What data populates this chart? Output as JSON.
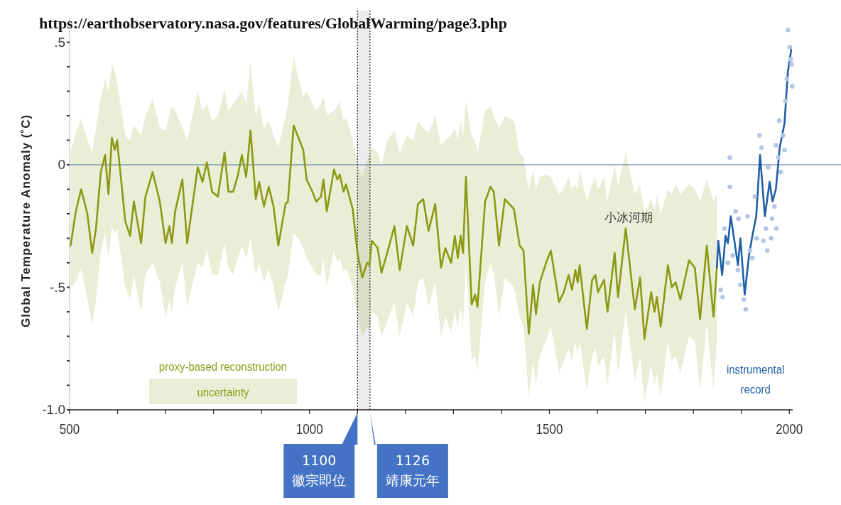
{
  "chart_data": {
    "type": "line",
    "title": "https://earthobservatory.nasa.gov/features/GlobalWarming/page3.php",
    "ylabel": "Global Temperature Anomaly (˚C)",
    "xlim": [
      500,
      2010
    ],
    "ylim": [
      -1.0,
      0.6
    ],
    "xticks": [
      500,
      {
        "value": 600,
        "label": null
      },
      {
        "value": 700,
        "label": null
      },
      {
        "value": 800,
        "label": null
      },
      {
        "value": 900,
        "label": null
      },
      1000,
      {
        "value": 1100,
        "label": null
      },
      {
        "value": 1200,
        "label": null
      },
      {
        "value": 1300,
        "label": null
      },
      {
        "value": 1400,
        "label": null
      },
      1500,
      {
        "value": 1600,
        "label": null
      },
      {
        "value": 1700,
        "label": null
      },
      {
        "value": 1800,
        "label": null
      },
      {
        "value": 1900,
        "label": null
      },
      2000
    ],
    "yticks": [
      {
        "value": -1.0,
        "label": "-1.0"
      },
      {
        "value": -0.9,
        "label": null
      },
      {
        "value": -0.8,
        "label": null
      },
      {
        "value": -0.7,
        "label": null
      },
      {
        "value": -0.6,
        "label": null
      },
      {
        "value": -0.5,
        "label": "-.5"
      },
      {
        "value": -0.4,
        "label": null
      },
      {
        "value": -0.3,
        "label": null
      },
      {
        "value": -0.2,
        "label": null
      },
      {
        "value": -0.1,
        "label": null
      },
      0,
      {
        "value": 0.1,
        "label": null
      },
      {
        "value": 0.2,
        "label": null
      },
      {
        "value": 0.3,
        "label": null
      },
      {
        "value": 0.4,
        "label": null
      },
      {
        "value": 0.5,
        "label": ".5"
      }
    ],
    "legend": "bottom",
    "series": [
      {
        "name": "proxy-based reconstruction",
        "color": "#8a9a12",
        "x": [
          502,
          513,
          524,
          537,
          547,
          555,
          565,
          574,
          581,
          588,
          594,
          599,
          616,
          626,
          634,
          649,
          658,
          673,
          688,
          700,
          708,
          713,
          720,
          735,
          745,
          767,
          777,
          786,
          797,
          809,
          823,
          831,
          841,
          851,
          859,
          868,
          877,
          888,
          895,
          905,
          915,
          925,
          935,
          950,
          955,
          967,
          977,
          987,
          994,
          1006,
          1014,
          1024,
          1029,
          1036,
          1051,
          1058,
          1063,
          1071,
          1076,
          1090,
          1100,
          1110,
          1120,
          1125,
          1130,
          1142,
          1150,
          1162,
          1177,
          1188,
          1203,
          1216,
          1226,
          1237,
          1248,
          1262,
          1274,
          1283,
          1295,
          1303,
          1309,
          1315,
          1320,
          1326,
          1338,
          1345,
          1350,
          1366,
          1377,
          1384,
          1395,
          1407,
          1426,
          1438,
          1446,
          1457,
          1466,
          1472,
          1480,
          1493,
          1503,
          1520,
          1530,
          1540,
          1547,
          1554,
          1559,
          1563,
          1578,
          1589,
          1596,
          1601,
          1614,
          1621,
          1636,
          1643,
          1659,
          1678,
          1689,
          1698,
          1712,
          1719,
          1724,
          1732,
          1747,
          1755,
          1763,
          1773,
          1791,
          1803,
          1814,
          1828,
          1842,
          1849
        ],
        "values": [
          -0.33,
          -0.19,
          -0.1,
          -0.2,
          -0.36,
          -0.26,
          -0.03,
          0.04,
          -0.12,
          0.11,
          0.06,
          0.1,
          -0.23,
          -0.29,
          -0.15,
          -0.32,
          -0.13,
          -0.03,
          -0.15,
          -0.32,
          -0.25,
          -0.32,
          -0.19,
          -0.06,
          -0.32,
          -0.01,
          -0.07,
          0.01,
          -0.11,
          -0.13,
          0.05,
          -0.11,
          -0.11,
          -0.04,
          0.04,
          -0.05,
          0.14,
          -0.14,
          -0.07,
          -0.17,
          -0.09,
          -0.17,
          -0.33,
          -0.16,
          -0.15,
          0.16,
          0.11,
          0.06,
          -0.06,
          -0.11,
          -0.15,
          -0.13,
          -0.06,
          -0.19,
          -0.02,
          -0.06,
          -0.04,
          -0.11,
          -0.08,
          -0.18,
          -0.36,
          -0.46,
          -0.4,
          -0.41,
          -0.31,
          -0.34,
          -0.44,
          -0.36,
          -0.25,
          -0.43,
          -0.25,
          -0.33,
          -0.16,
          -0.14,
          -0.27,
          -0.16,
          -0.42,
          -0.34,
          -0.4,
          -0.29,
          -0.38,
          -0.29,
          -0.36,
          -0.05,
          -0.57,
          -0.53,
          -0.58,
          -0.15,
          -0.09,
          -0.11,
          -0.33,
          -0.14,
          -0.18,
          -0.33,
          -0.35,
          -0.69,
          -0.49,
          -0.61,
          -0.48,
          -0.4,
          -0.35,
          -0.56,
          -0.52,
          -0.45,
          -0.51,
          -0.43,
          -0.48,
          -0.41,
          -0.67,
          -0.47,
          -0.45,
          -0.52,
          -0.47,
          -0.6,
          -0.36,
          -0.54,
          -0.26,
          -0.59,
          -0.46,
          -0.71,
          -0.52,
          -0.6,
          -0.54,
          -0.66,
          -0.41,
          -0.5,
          -0.48,
          -0.55,
          -0.39,
          -0.42,
          -0.63,
          -0.33,
          -0.62,
          -0.42
        ],
        "upper": [
          0.05,
          0.13,
          0.19,
          0.1,
          0.05,
          0.15,
          0.27,
          0.35,
          0.3,
          0.41,
          0.38,
          0.34,
          0.12,
          0.1,
          0.16,
          0.12,
          0.2,
          0.27,
          0.15,
          0.14,
          0.2,
          0.24,
          0.22,
          0.15,
          0.1,
          0.3,
          0.22,
          0.25,
          0.18,
          0.2,
          0.31,
          0.22,
          0.25,
          0.28,
          0.3,
          0.25,
          0.42,
          0.2,
          0.25,
          0.15,
          0.18,
          0.12,
          0.07,
          0.2,
          0.25,
          0.44,
          0.35,
          0.28,
          0.3,
          0.25,
          0.22,
          0.25,
          0.28,
          0.2,
          0.22,
          0.24,
          0.26,
          0.18,
          0.2,
          0.1,
          0.0,
          -0.05,
          0.02,
          0.05,
          0.07,
          0.05,
          0.0,
          0.1,
          0.14,
          0.05,
          0.12,
          0.1,
          0.18,
          0.15,
          0.13,
          0.2,
          0.08,
          0.1,
          0.12,
          0.15,
          0.1,
          0.18,
          0.12,
          0.26,
          0.12,
          0.1,
          0.05,
          0.22,
          0.24,
          0.2,
          0.15,
          0.2,
          0.18,
          0.05,
          0.03,
          -0.1,
          -0.02,
          -0.1,
          -0.05,
          -0.04,
          -0.05,
          -0.12,
          -0.1,
          -0.05,
          -0.1,
          -0.08,
          -0.1,
          -0.02,
          -0.15,
          -0.08,
          -0.05,
          -0.1,
          -0.05,
          -0.15,
          0.0,
          -0.08,
          0.05,
          -0.12,
          -0.08,
          -0.2,
          -0.14,
          -0.18,
          -0.12,
          -0.2,
          -0.1,
          -0.12,
          -0.08,
          -0.12,
          -0.08,
          -0.1,
          -0.15,
          -0.06,
          -0.15,
          -0.12
        ],
        "lower": [
          -0.5,
          -0.48,
          -0.42,
          -0.55,
          -0.65,
          -0.55,
          -0.35,
          -0.28,
          -0.38,
          -0.25,
          -0.28,
          -0.26,
          -0.5,
          -0.55,
          -0.45,
          -0.6,
          -0.45,
          -0.4,
          -0.48,
          -0.62,
          -0.55,
          -0.6,
          -0.5,
          -0.4,
          -0.58,
          -0.4,
          -0.42,
          -0.35,
          -0.45,
          -0.45,
          -0.32,
          -0.42,
          -0.45,
          -0.38,
          -0.33,
          -0.38,
          -0.3,
          -0.45,
          -0.4,
          -0.48,
          -0.42,
          -0.5,
          -0.6,
          -0.48,
          -0.45,
          -0.28,
          -0.3,
          -0.34,
          -0.38,
          -0.42,
          -0.45,
          -0.45,
          -0.38,
          -0.5,
          -0.35,
          -0.4,
          -0.38,
          -0.44,
          -0.42,
          -0.5,
          -0.62,
          -0.7,
          -0.66,
          -0.68,
          -0.6,
          -0.62,
          -0.7,
          -0.64,
          -0.56,
          -0.7,
          -0.56,
          -0.62,
          -0.48,
          -0.46,
          -0.58,
          -0.48,
          -0.7,
          -0.62,
          -0.68,
          -0.6,
          -0.66,
          -0.58,
          -0.65,
          -0.4,
          -0.8,
          -0.78,
          -0.84,
          -0.48,
          -0.4,
          -0.44,
          -0.62,
          -0.46,
          -0.5,
          -0.62,
          -0.66,
          -0.95,
          -0.8,
          -0.9,
          -0.78,
          -0.72,
          -0.66,
          -0.85,
          -0.8,
          -0.75,
          -0.8,
          -0.72,
          -0.78,
          -0.72,
          -0.92,
          -0.78,
          -0.75,
          -0.82,
          -0.78,
          -0.9,
          -0.68,
          -0.85,
          -0.6,
          -0.88,
          -0.78,
          -0.97,
          -0.82,
          -0.9,
          -0.85,
          -0.95,
          -0.72,
          -0.8,
          -0.78,
          -0.85,
          -0.7,
          -0.72,
          -0.92,
          -0.65,
          -0.92,
          -0.72
        ]
      },
      {
        "type": "scatter",
        "color": "#b4c6e2",
        "marker": "circle",
        "x": [
          1876,
          1876,
          1857,
          1861,
          1865,
          1872,
          1882,
          1888,
          1893,
          1894,
          1898,
          1905,
          1909,
          1913,
          1918,
          1923,
          1928,
          1932,
          1938,
          1942,
          1946,
          1951,
          1954,
          1956,
          1962,
          1964,
          1969,
          1973,
          1972,
          1977,
          1979,
          1982,
          1987,
          1990,
          1992,
          1995,
          1997,
          2001,
          2005,
          2006,
          2003
        ],
        "values": [
          0.03,
          -0.09,
          -0.51,
          -0.54,
          -0.26,
          -0.4,
          -0.37,
          -0.19,
          -0.43,
          -0.22,
          -0.49,
          -0.55,
          -0.59,
          -0.21,
          -0.35,
          -0.38,
          -0.13,
          -0.3,
          0.12,
          0.07,
          -0.31,
          -0.26,
          -0.35,
          -0.01,
          -0.3,
          -0.22,
          -0.17,
          -0.26,
          0.08,
          0.03,
          0.18,
          -0.03,
          0.12,
          0.06,
          0.26,
          0.35,
          0.55,
          0.48,
          0.41,
          0.32,
          0.43
        ]
      },
      {
        "name": "instrumental record",
        "color": "#1f5fa8",
        "x": [
          1849,
          1852,
          1860,
          1867,
          1872,
          1878,
          1893,
          1898,
          1907,
          1916,
          1923,
          1931,
          1939,
          1949,
          1959,
          1965,
          1972,
          1980,
          1990,
          1997,
          2004
        ],
        "values": [
          -0.42,
          -0.31,
          -0.45,
          -0.29,
          -0.32,
          -0.21,
          -0.41,
          -0.3,
          -0.53,
          -0.37,
          -0.29,
          -0.21,
          0.04,
          -0.21,
          -0.07,
          -0.15,
          -0.1,
          0.07,
          0.17,
          0.38,
          0.47
        ]
      }
    ],
    "bands": [
      {
        "axis": "x",
        "from": 1100,
        "to": 1126,
        "color": "#ececec"
      }
    ],
    "ref_lines": [
      {
        "axis": "y",
        "value": 0,
        "color": "#4a6fa0",
        "line_style": "solid"
      },
      {
        "axis": "x",
        "value": 1100,
        "label": "1100\n徽宗即位",
        "color": "#222222",
        "line_style": "dotted"
      },
      {
        "axis": "x",
        "value": 1126,
        "label": "1126\n靖康元年",
        "color": "#222222",
        "line_style": "dotted"
      }
    ],
    "annotations": [
      "小冰河期",
      "uncertainty"
    ]
  }
}
